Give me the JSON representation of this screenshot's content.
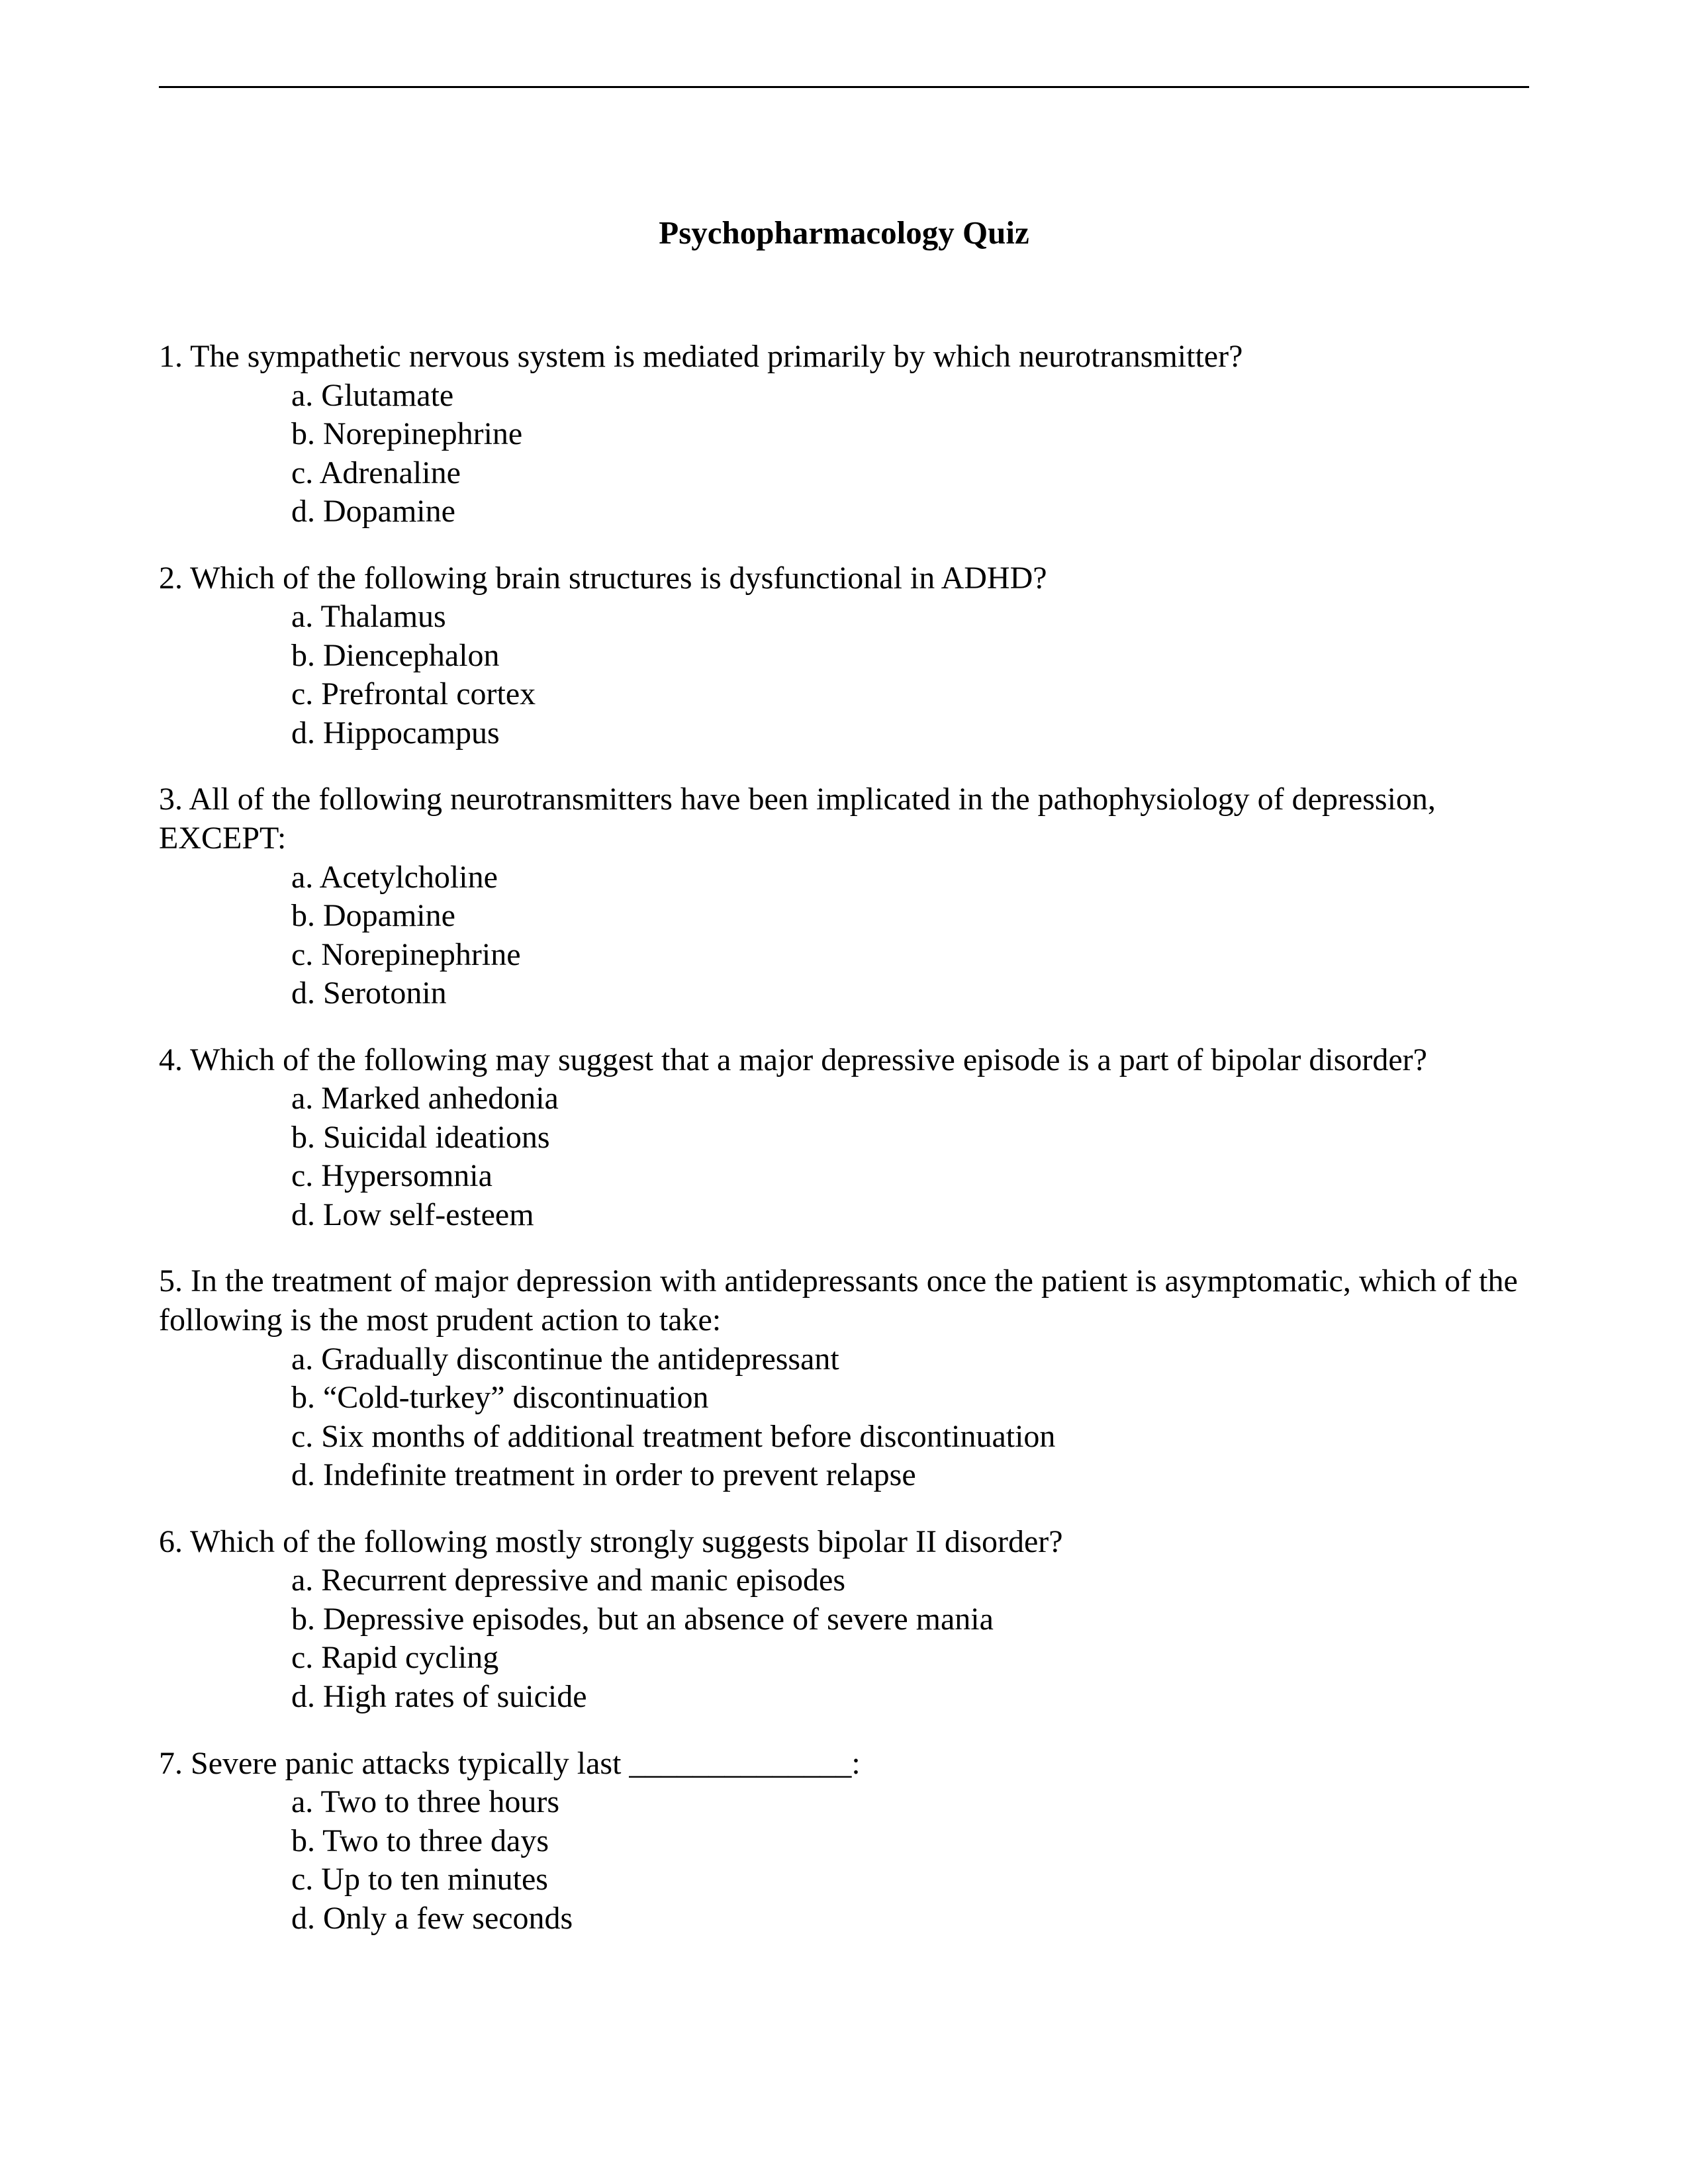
{
  "title": "Psychopharmacology Quiz",
  "questions": [
    {
      "number": "1.",
      "text": "The sympathetic nervous system is mediated primarily by which neurotransmitter?",
      "options": [
        "a. Glutamate",
        "b. Norepinephrine",
        "c. Adrenaline",
        "d. Dopamine"
      ]
    },
    {
      "number": "2.",
      "text": "Which of the following brain structures is dysfunctional in ADHD?",
      "options": [
        "a. Thalamus",
        "b. Diencephalon",
        "c. Prefrontal cortex",
        "d. Hippocampus"
      ]
    },
    {
      "number": "3.",
      "text": " All of the following neurotransmitters have been implicated in the pathophysiology of depression, EXCEPT:",
      "options": [
        "a. Acetylcholine",
        "b. Dopamine",
        "c. Norepinephrine",
        "d. Serotonin"
      ]
    },
    {
      "number": "4.",
      "text": "Which of the following may suggest that a major depressive episode is a part of bipolar disorder?",
      "options": [
        "a. Marked anhedonia",
        "b. Suicidal ideations",
        "c. Hypersomnia",
        "d. Low self-esteem"
      ]
    },
    {
      "number": "5.",
      "text": "In the treatment of major depression with antidepressants once the patient is asymptomatic, which of the following is the most prudent action to take:",
      "options": [
        "a. Gradually discontinue the antidepressant",
        "b. “Cold-turkey” discontinuation",
        "c. Six months of additional treatment before discontinuation",
        "d. Indefinite treatment in order to prevent relapse"
      ]
    },
    {
      "number": "6.",
      "text": "Which of the following mostly strongly suggests bipolar II disorder?",
      "options": [
        "a. Recurrent depressive and manic episodes",
        "b. Depressive episodes, but an absence of severe mania",
        "c. Rapid cycling",
        "d. High rates of suicide"
      ]
    },
    {
      "number": "7.",
      "text": "Severe panic attacks typically last ______________:",
      "options": [
        "a. Two to three hours",
        "b. Two to three days",
        "c. Up to ten minutes",
        "d. Only a few seconds"
      ]
    }
  ]
}
